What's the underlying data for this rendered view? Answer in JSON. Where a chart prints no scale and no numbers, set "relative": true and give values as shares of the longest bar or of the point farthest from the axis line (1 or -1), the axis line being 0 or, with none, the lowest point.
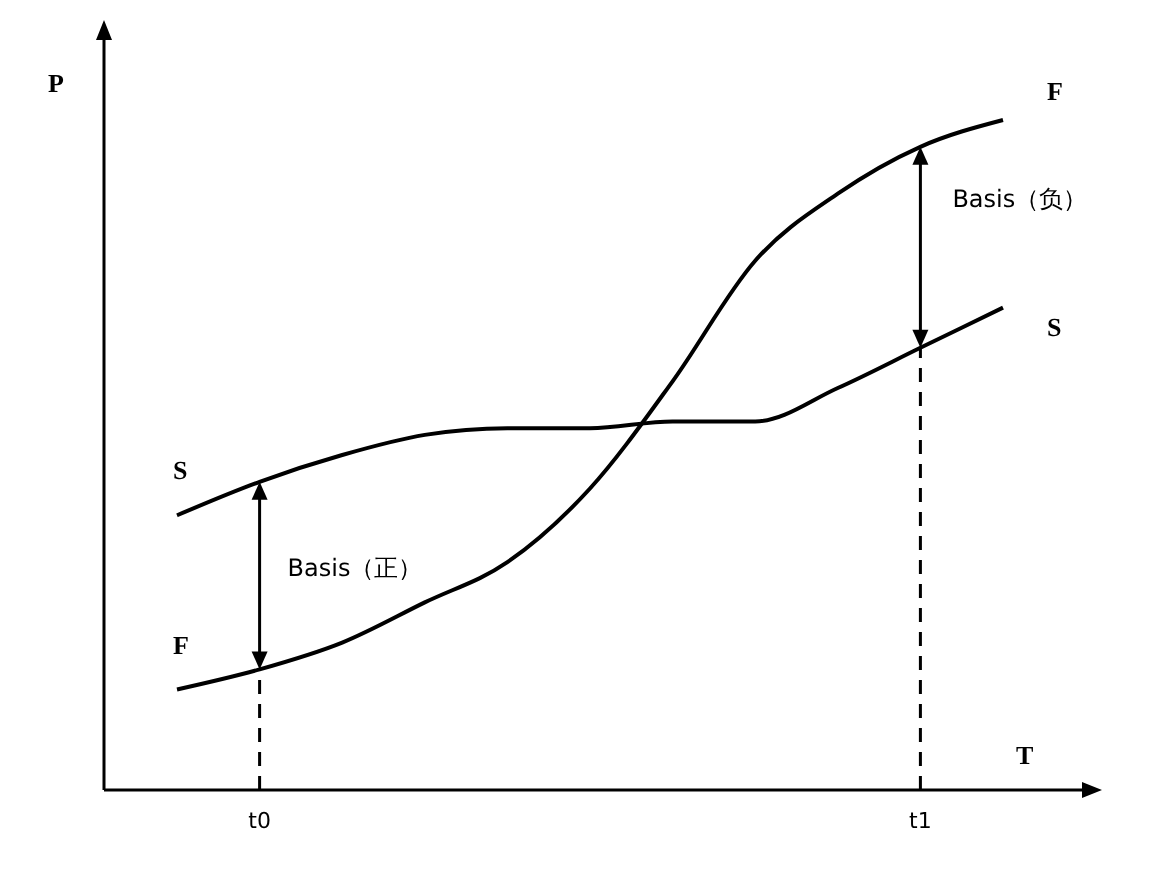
{
  "chart_data": {
    "type": "line",
    "relative": true,
    "xlabel": "T",
    "ylabel": "P",
    "categories": [
      null,
      "t0",
      null,
      null,
      null,
      null,
      null,
      null,
      null,
      "t1",
      null
    ],
    "grid": false,
    "marker": "none",
    "line_style": "solid",
    "series": [
      {
        "name": "S",
        "color": "#000000",
        "values": [
          0.41,
          0.46,
          0.5,
          0.53,
          0.54,
          0.54,
          0.55,
          0.55,
          0.6,
          0.66,
          0.72
        ]
      },
      {
        "name": "F",
        "color": "#000000",
        "values": [
          0.15,
          0.18,
          0.22,
          0.28,
          0.34,
          0.45,
          0.61,
          0.79,
          0.89,
          0.96,
          1
        ]
      }
    ],
    "ref_lines": [
      {
        "axis": "x",
        "value": "t0",
        "line_style": "dashed"
      },
      {
        "axis": "x",
        "value": "t1",
        "line_style": "dashed"
      }
    ],
    "annotations": [
      "Basis（正）",
      "Basis（负）"
    ]
  }
}
